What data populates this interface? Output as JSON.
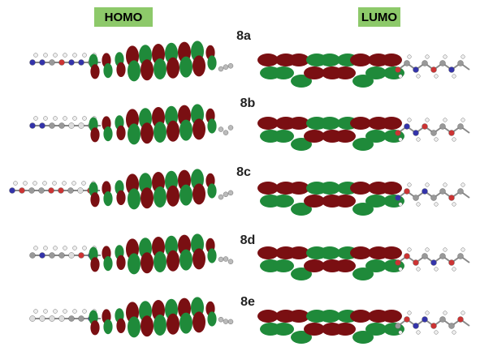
{
  "headers": {
    "homo": "HOMO",
    "lumo": "LUMO"
  },
  "rows": [
    {
      "label": "8a"
    },
    {
      "label": "8b"
    },
    {
      "label": "8c"
    },
    {
      "label": "8d"
    },
    {
      "label": "8e"
    }
  ]
}
